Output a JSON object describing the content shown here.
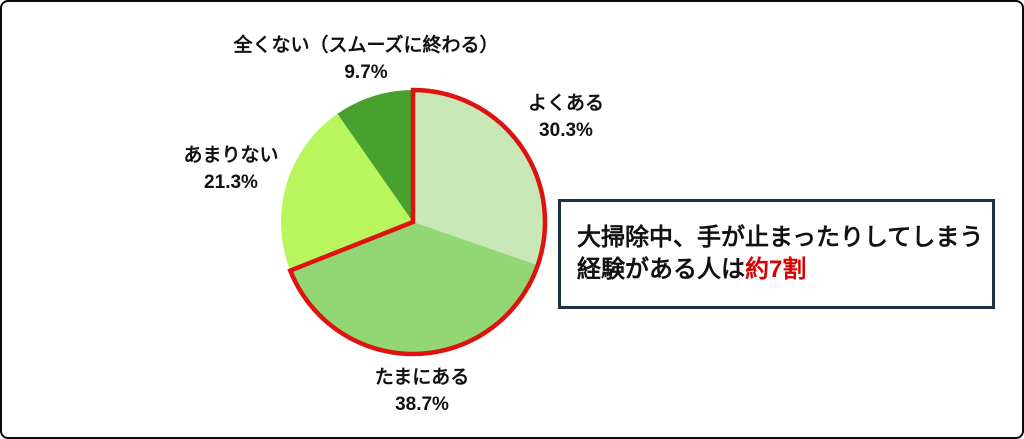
{
  "chart_data": {
    "type": "pie",
    "title": "",
    "start_angle_deg": 0,
    "direction": "clockwise",
    "slices": [
      {
        "label": "よくある",
        "value": 30.3,
        "pct_label": "30.3%",
        "color": "#c8e8b8"
      },
      {
        "label": "たまにある",
        "value": 38.7,
        "pct_label": "38.7%",
        "color": "#92d773"
      },
      {
        "label": "あまりない",
        "value": 21.3,
        "pct_label": "21.3%",
        "color": "#b9f65e"
      },
      {
        "label": "全くない（スムーズに終わる）",
        "value": 9.7,
        "pct_label": "9.7%",
        "color": "#48a12c"
      }
    ],
    "highlight": {
      "slice_indexes": [
        0,
        1
      ],
      "outline_color": "#de1310",
      "outline_width": 4.5
    },
    "legend_position": "none",
    "grid": false
  },
  "callout": {
    "line1": "大掃除中、手が止まったりしてしまう",
    "line2_prefix": "経験がある人は",
    "line2_highlight": "約7割",
    "highlight_color": "#d90000",
    "border_color": "#1d3144"
  }
}
